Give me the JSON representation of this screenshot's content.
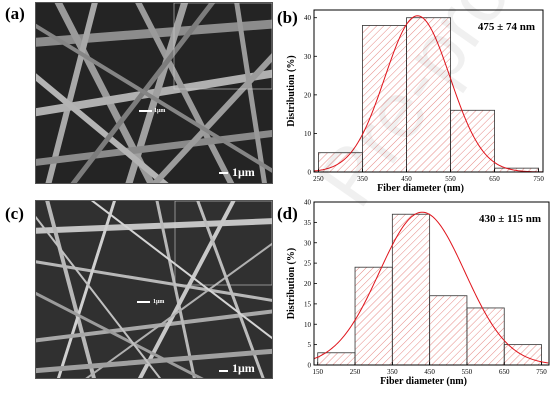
{
  "panels": {
    "a": {
      "letter": "(a)",
      "scale_main": "1μm",
      "scale_inset": "1μm"
    },
    "b": {
      "letter": "(b)"
    },
    "c": {
      "letter": "(c)",
      "scale_main": "1μm",
      "scale_inset": "1μm"
    },
    "d": {
      "letter": "(d)"
    }
  },
  "watermark": "Pre-proofs",
  "colors": {
    "bar_stroke": "#d9534f",
    "bar_hatch": "#e06a66",
    "fit_curve": "#e0141c",
    "sem_bg": "#262626"
  },
  "chart_data": [
    {
      "id": "b",
      "type": "bar",
      "annotation": "475 ± 74 nm",
      "xlabel": "Fiber diameter (nm)",
      "ylabel": "Distribution (%)",
      "xticks": [
        250,
        350,
        450,
        550,
        650,
        750
      ],
      "yticks": [
        0,
        10,
        20,
        30,
        40
      ],
      "xlim": [
        240,
        760
      ],
      "ylim": [
        0,
        42
      ],
      "bins": [
        {
          "x0": 250,
          "x1": 350,
          "value": 5
        },
        {
          "x0": 350,
          "x1": 450,
          "value": 38
        },
        {
          "x0": 450,
          "x1": 550,
          "value": 40
        },
        {
          "x0": 550,
          "x1": 650,
          "value": 16
        },
        {
          "x0": 650,
          "x1": 750,
          "value": 1
        }
      ],
      "fit": {
        "mean": 475,
        "sd": 74,
        "peak": 40.5
      },
      "grid": false
    },
    {
      "id": "d",
      "type": "bar",
      "annotation": "430 ± 115 nm",
      "xlabel": "Fiber diameter (nm)",
      "ylabel": "Distribution (%)",
      "xticks": [
        150,
        250,
        350,
        450,
        550,
        650,
        750
      ],
      "yticks": [
        0,
        5,
        10,
        15,
        20,
        25,
        30,
        35,
        40
      ],
      "xlim": [
        140,
        770
      ],
      "ylim": [
        0,
        40
      ],
      "bins": [
        {
          "x0": 150,
          "x1": 250,
          "value": 3
        },
        {
          "x0": 250,
          "x1": 350,
          "value": 24
        },
        {
          "x0": 350,
          "x1": 450,
          "value": 37
        },
        {
          "x0": 450,
          "x1": 550,
          "value": 17
        },
        {
          "x0": 550,
          "x1": 650,
          "value": 14
        },
        {
          "x0": 650,
          "x1": 750,
          "value": 5
        }
      ],
      "fit": {
        "mean": 430,
        "sd": 115,
        "peak": 37.5
      },
      "grid": false
    }
  ]
}
